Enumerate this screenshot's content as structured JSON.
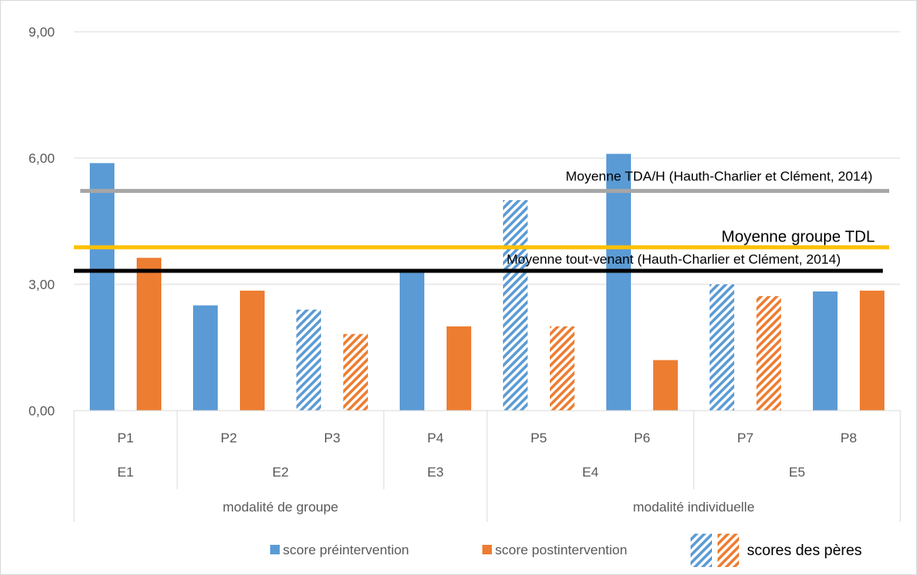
{
  "chart_data": {
    "type": "bar",
    "title": "",
    "xlabel": "",
    "ylabel": "",
    "ylim": [
      0,
      9
    ],
    "y_ticks": [
      "0,00",
      "3,00",
      "6,00",
      "9,00"
    ],
    "y_tick_values": [
      0,
      3,
      6,
      9
    ],
    "grid": true,
    "categories": [
      "P1",
      "P2",
      "P3",
      "P4",
      "P5",
      "P6",
      "P7",
      "P8"
    ],
    "category_levels": {
      "enfant": [
        {
          "label": "E1",
          "participants": [
            "P1"
          ]
        },
        {
          "label": "E2",
          "participants": [
            "P2",
            "P3"
          ]
        },
        {
          "label": "E3",
          "participants": [
            "P4"
          ]
        },
        {
          "label": "E4",
          "participants": [
            "P5",
            "P6"
          ]
        },
        {
          "label": "E5",
          "participants": [
            "P7",
            "P8"
          ]
        }
      ],
      "modalite": [
        {
          "label": "modalité de groupe",
          "participants": [
            "P1",
            "P2",
            "P3",
            "P4"
          ]
        },
        {
          "label": "modalité individuelle",
          "participants": [
            "P5",
            "P6",
            "P7",
            "P8"
          ]
        }
      ]
    },
    "series": [
      {
        "name": "score préintervention",
        "color": "#5b9bd5",
        "values": [
          5.88,
          2.5,
          2.4,
          3.33,
          5.0,
          6.1,
          3.0,
          2.83
        ]
      },
      {
        "name": "score postintervention",
        "color": "#ed7d31",
        "values": [
          3.63,
          2.85,
          1.82,
          2.0,
          2.0,
          1.2,
          2.72,
          2.85
        ]
      }
    ],
    "hatched_categories": [
      "P3",
      "P5",
      "P7"
    ],
    "hatched_label": "scores des pères",
    "reference_lines": [
      {
        "label": "Moyenne TDA/H (Hauth-Charlier et Clément, 2014)",
        "value": 5.22,
        "color": "#a6a6a6"
      },
      {
        "label": "Moyenne groupe TDL",
        "value": 3.88,
        "color": "#ffc000"
      },
      {
        "label": "Moyenne tout-venant (Hauth-Charlier et Clément, 2014)",
        "value": 3.32,
        "color": "#000000"
      }
    ],
    "legend_position": "bottom"
  }
}
